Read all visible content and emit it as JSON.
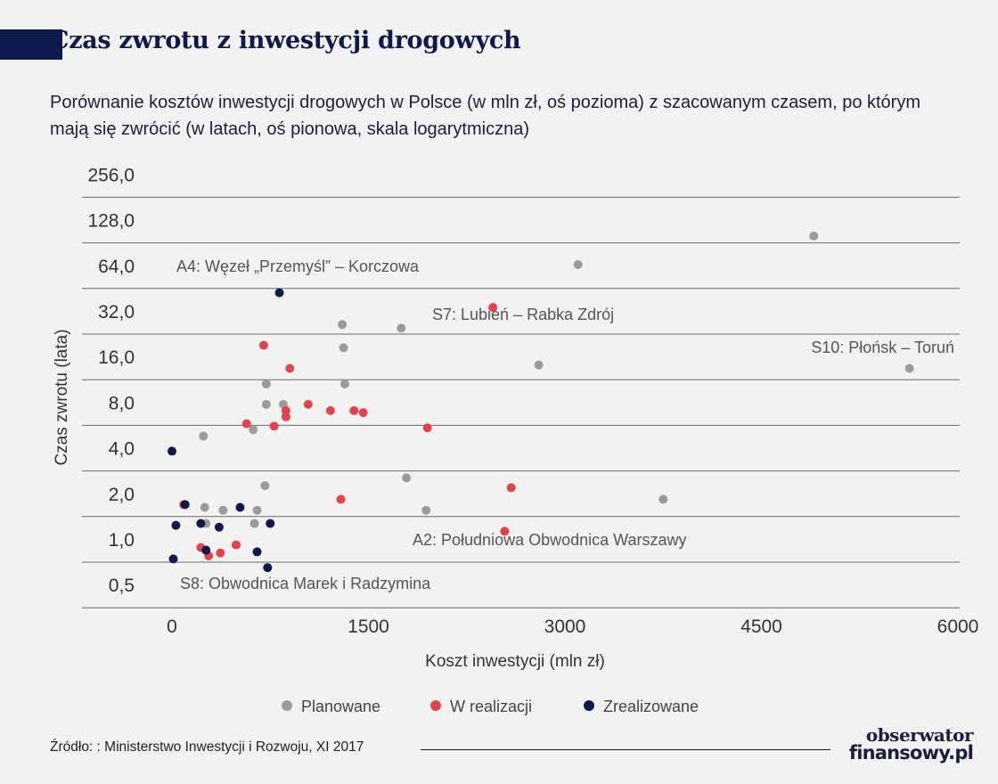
{
  "header": {
    "title": "Czas zwrotu z inwestycji drogowych",
    "subtitle": "Porównanie kosztów inwestycji drogowych w Polsce (w mln zł, oś pozioma) z szacowanym czasem, po którym mają się zwrócić (w latach, oś pionowa, skala logarytmiczna)"
  },
  "footer": {
    "source": "Źródło: : Ministerstwo Inwestycji i Rozwoju, XI 2017",
    "logo_line1": "obserwator",
    "logo_line2": "finansowy.pl"
  },
  "legend": {
    "planned": "Planowane",
    "in_progress": "W realizacji",
    "completed": "Zrealizowane"
  },
  "colors": {
    "planned": "#9b9b9b",
    "in_progress": "#e0454f",
    "completed": "#0f1a4a",
    "grid": "#6b6b6b"
  },
  "chart_data": {
    "type": "scatter",
    "xlabel": "Koszt inwestycji (mln zł)",
    "ylabel": "Czas zwrotu (lata)",
    "xlim": [
      -700,
      6000
    ],
    "ylim": [
      0.5,
      256
    ],
    "y_scale": "log2",
    "grid": "horizontal",
    "legend_position": "bottom",
    "x_ticks": [
      "0",
      "1500",
      "3000",
      "4500",
      "6000"
    ],
    "y_ticks": [
      "0,5",
      "1,0",
      "2,0",
      "4,0",
      "8,0",
      "16,0",
      "32,0",
      "64,0",
      "128,0",
      "256,0"
    ],
    "annotations": [
      {
        "text": "A4: Węzeł „Przemyśl” – Korczowa",
        "x": 820,
        "y": 60
      },
      {
        "text": "S7: Lubień – Rabka Zdrój",
        "x": 2450,
        "y": 48
      },
      {
        "text": "S10: Płońsk – Toruń",
        "x": 5630,
        "y": 19
      },
      {
        "text": "A2: Południowa Obwodnica Warszawy",
        "x": 2550,
        "y": 1.85
      },
      {
        "text": "S8: Obwodnica Marek i Radzymina",
        "x": 730,
        "y": 0.95
      }
    ],
    "series": [
      {
        "name": "Planowane",
        "color": "#9b9b9b",
        "points": [
          {
            "x": 4900,
            "y": 142
          },
          {
            "x": 3100,
            "y": 92
          },
          {
            "x": 1300,
            "y": 37
          },
          {
            "x": 1750,
            "y": 35
          },
          {
            "x": 1310,
            "y": 26
          },
          {
            "x": 2800,
            "y": 20
          },
          {
            "x": 5630,
            "y": 19
          },
          {
            "x": 720,
            "y": 15
          },
          {
            "x": 1320,
            "y": 15
          },
          {
            "x": 720,
            "y": 11
          },
          {
            "x": 850,
            "y": 11
          },
          {
            "x": 620,
            "y": 7.5
          },
          {
            "x": 240,
            "y": 6.8
          },
          {
            "x": 1790,
            "y": 3.6
          },
          {
            "x": 710,
            "y": 3.2
          },
          {
            "x": 3750,
            "y": 2.6
          },
          {
            "x": 250,
            "y": 2.3
          },
          {
            "x": 390,
            "y": 2.2
          },
          {
            "x": 650,
            "y": 2.2
          },
          {
            "x": 1940,
            "y": 2.2
          },
          {
            "x": 260,
            "y": 1.8
          },
          {
            "x": 630,
            "y": 1.8
          }
        ]
      },
      {
        "name": "W realizacji",
        "color": "#e0454f",
        "points": [
          {
            "x": 2450,
            "y": 48
          },
          {
            "x": 700,
            "y": 27
          },
          {
            "x": 900,
            "y": 19
          },
          {
            "x": 1040,
            "y": 11
          },
          {
            "x": 870,
            "y": 10
          },
          {
            "x": 1210,
            "y": 10
          },
          {
            "x": 1390,
            "y": 10
          },
          {
            "x": 1460,
            "y": 9.7
          },
          {
            "x": 870,
            "y": 9.1
          },
          {
            "x": 570,
            "y": 8.2
          },
          {
            "x": 780,
            "y": 7.9
          },
          {
            "x": 1950,
            "y": 7.7
          },
          {
            "x": 2590,
            "y": 3.1
          },
          {
            "x": 1290,
            "y": 2.6
          },
          {
            "x": 90,
            "y": 2.4
          },
          {
            "x": 2540,
            "y": 1.6
          },
          {
            "x": 490,
            "y": 1.3
          },
          {
            "x": 220,
            "y": 1.25
          },
          {
            "x": 370,
            "y": 1.15
          },
          {
            "x": 280,
            "y": 1.1
          }
        ]
      },
      {
        "name": "Zrealizowane",
        "color": "#0f1a4a",
        "points": [
          {
            "x": 820,
            "y": 60
          },
          {
            "x": 0,
            "y": 5.4
          },
          {
            "x": 100,
            "y": 2.4
          },
          {
            "x": 520,
            "y": 2.3
          },
          {
            "x": 30,
            "y": 1.75
          },
          {
            "x": 220,
            "y": 1.8
          },
          {
            "x": 750,
            "y": 1.8
          },
          {
            "x": 360,
            "y": 1.7
          },
          {
            "x": 260,
            "y": 1.2
          },
          {
            "x": 650,
            "y": 1.17
          },
          {
            "x": 10,
            "y": 1.05
          },
          {
            "x": 730,
            "y": 0.92
          }
        ]
      }
    ]
  }
}
